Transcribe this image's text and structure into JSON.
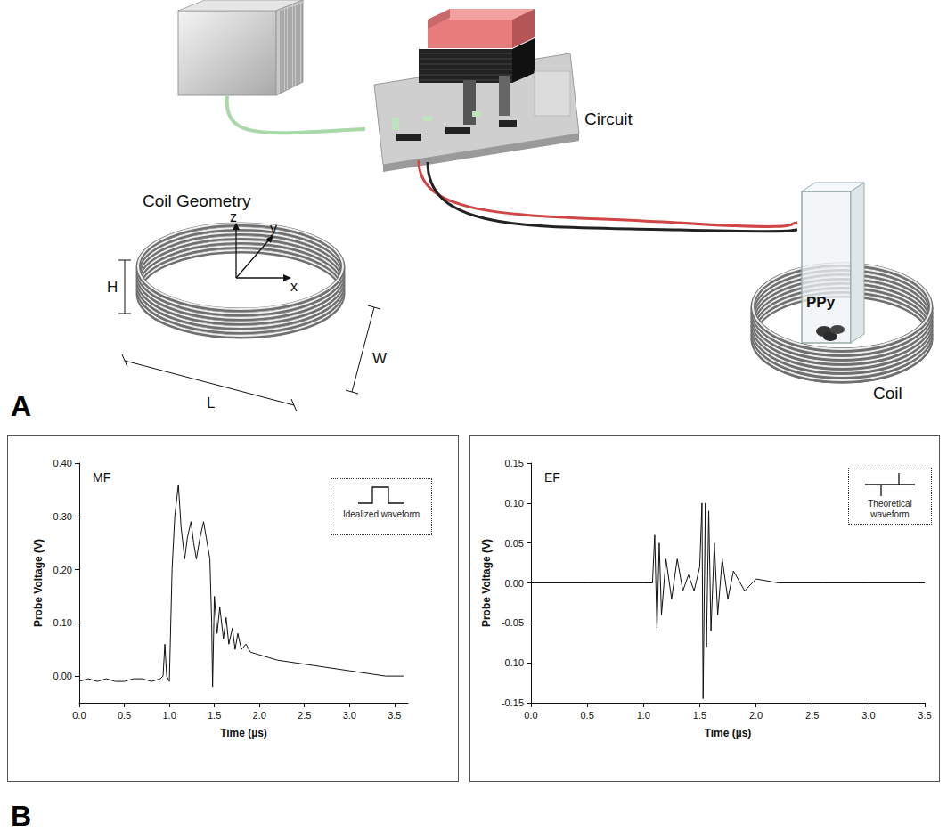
{
  "panels": {
    "A": {
      "letter": "A",
      "labels": {
        "circuit": "Circuit",
        "coil_geometry": "Coil Geometry",
        "coil": "Coil",
        "sample": "PPy",
        "axes": [
          "z",
          "y",
          "x"
        ],
        "dimensions": [
          "H",
          "W",
          "L"
        ]
      }
    },
    "B": {
      "letter": "B"
    }
  },
  "chart_data": [
    {
      "type": "line",
      "title": "MF",
      "x_label": "Time (µs)",
      "y_label": "Probe Voltage (V)",
      "annotations": [
        "Idealized waveform"
      ],
      "color": "#111111",
      "grid": false,
      "x": [
        0,
        0.1,
        0.2,
        0.3,
        0.4,
        0.5,
        0.6,
        0.7,
        0.8,
        0.9,
        0.93,
        0.95,
        0.97,
        1.0,
        1.03,
        1.06,
        1.1,
        1.13,
        1.17,
        1.2,
        1.24,
        1.27,
        1.3,
        1.34,
        1.38,
        1.41,
        1.45,
        1.47,
        1.48,
        1.5,
        1.53,
        1.56,
        1.6,
        1.63,
        1.66,
        1.7,
        1.73,
        1.76,
        1.8,
        1.85,
        1.9,
        2.0,
        2.1,
        2.2,
        2.4,
        2.6,
        2.8,
        3.0,
        3.2,
        3.4,
        3.6
      ],
      "values": [
        -0.01,
        -0.005,
        -0.01,
        -0.005,
        -0.01,
        -0.01,
        -0.005,
        -0.005,
        -0.01,
        -0.005,
        0.0,
        0.06,
        0.0,
        -0.01,
        0.2,
        0.3,
        0.36,
        0.28,
        0.22,
        0.26,
        0.29,
        0.25,
        0.22,
        0.26,
        0.29,
        0.26,
        0.22,
        0.1,
        -0.02,
        0.15,
        0.08,
        0.13,
        0.07,
        0.11,
        0.06,
        0.09,
        0.05,
        0.08,
        0.05,
        0.06,
        0.045,
        0.04,
        0.035,
        0.03,
        0.025,
        0.02,
        0.015,
        0.01,
        0.005,
        0.0,
        0.0
      ],
      "xlim": [
        0,
        3.65
      ],
      "xticks": [
        {
          "value": 0,
          "label": "0.0"
        },
        0.5,
        {
          "value": 1,
          "label": "1.0"
        },
        1.5,
        {
          "value": 2,
          "label": "2.0"
        },
        2.5,
        {
          "value": 3,
          "label": "3.0"
        },
        3.5
      ],
      "ylim": [
        -0.05,
        0.4
      ],
      "yticks": [
        {
          "value": 0,
          "label": "0.00"
        },
        {
          "value": 0.1,
          "label": "0.10"
        },
        {
          "value": 0.2,
          "label": "0.20"
        },
        {
          "value": 0.3,
          "label": "0.30"
        },
        {
          "value": 0.4,
          "label": "0.40"
        }
      ]
    },
    {
      "type": "line",
      "title": "EF",
      "x_label": "Time (µs)",
      "y_label": "Probe Voltage (V)",
      "annotations": [
        "Theoretical waveform"
      ],
      "color": "#111111",
      "grid": false,
      "x": [
        0,
        0.5,
        1.0,
        1.08,
        1.1,
        1.12,
        1.14,
        1.16,
        1.2,
        1.25,
        1.3,
        1.35,
        1.4,
        1.45,
        1.5,
        1.52,
        1.53,
        1.55,
        1.56,
        1.58,
        1.6,
        1.63,
        1.66,
        1.7,
        1.75,
        1.8,
        1.9,
        2.0,
        2.2,
        2.6,
        3.0,
        3.5
      ],
      "values": [
        0,
        0,
        0,
        0,
        0.06,
        -0.06,
        0.05,
        -0.04,
        0.03,
        -0.02,
        0.03,
        -0.01,
        0.01,
        -0.01,
        0.02,
        0.1,
        -0.145,
        0.1,
        -0.08,
        0.09,
        -0.06,
        0.05,
        -0.04,
        0.03,
        -0.02,
        0.015,
        -0.01,
        0.005,
        0,
        0,
        0,
        0
      ],
      "xlim": [
        0,
        3.5
      ],
      "xticks": [
        {
          "value": 0,
          "label": "0.0"
        },
        0.5,
        {
          "value": 1,
          "label": "1.0"
        },
        1.5,
        {
          "value": 2,
          "label": "2.0"
        },
        2.5,
        {
          "value": 3,
          "label": "3.0"
        },
        3.5
      ],
      "ylim": [
        -0.15,
        0.15
      ],
      "yticks": [
        -0.15,
        {
          "value": -0.1,
          "label": "-0.10"
        },
        -0.05,
        {
          "value": 0,
          "label": "0.00"
        },
        0.05,
        {
          "value": 0.1,
          "label": "0.10"
        },
        0.15
      ]
    }
  ]
}
